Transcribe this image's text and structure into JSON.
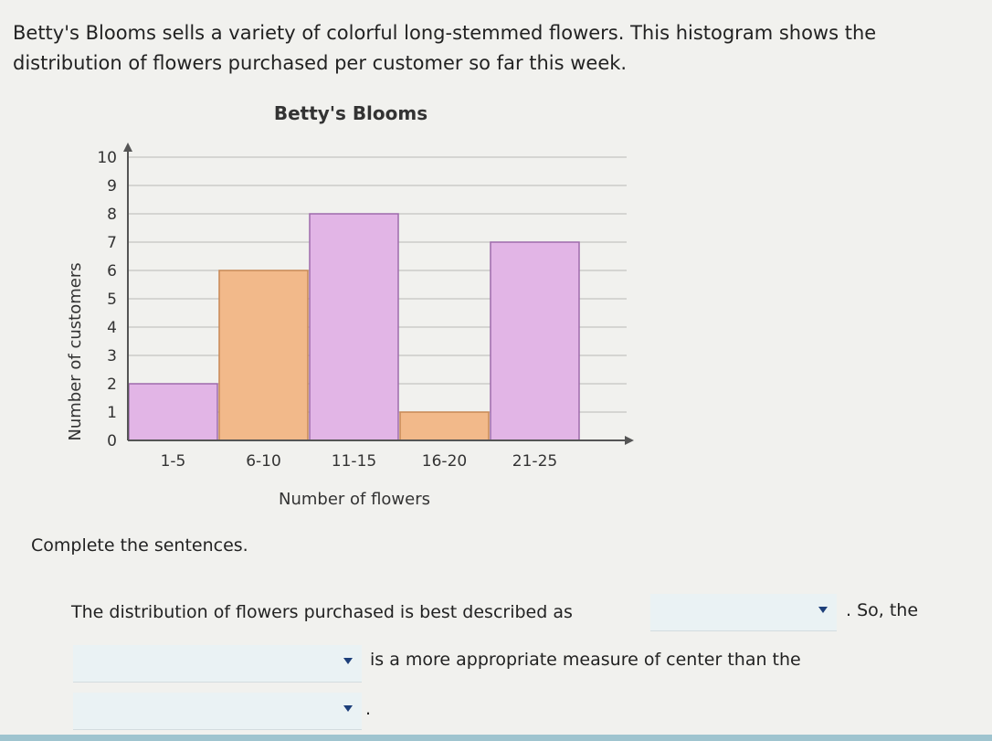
{
  "intro": "Betty's Blooms sells a variety of colorful long-stemmed flowers. This histogram shows the distribution of flowers purchased per customer so far this week.",
  "chart_data": {
    "type": "bar",
    "title": "Betty's Blooms",
    "xlabel": "Number of flowers",
    "ylabel": "Number of customers",
    "categories": [
      "1-5",
      "6-10",
      "11-15",
      "16-20",
      "21-25"
    ],
    "values": [
      2,
      6,
      8,
      1,
      7
    ],
    "ylim": [
      0,
      10
    ],
    "yticks": [
      0,
      1,
      2,
      3,
      4,
      5,
      6,
      7,
      8,
      9,
      10
    ],
    "grid": true,
    "colors": [
      "#e2b5e6",
      "#f2b98a",
      "#e2b5e6",
      "#f2b98a",
      "#e2b5e6"
    ],
    "edge_colors": [
      "#9e6bab",
      "#c78854",
      "#9e6bab",
      "#c78854",
      "#9e6bab"
    ]
  },
  "prompt": "Complete the sentences.",
  "sentence1_before": "The distribution of flowers purchased is best described as",
  "sentence1_after": ". So, the",
  "sentence2": "is a more appropriate measure of center than the",
  "sentence3_after": ".",
  "dropdowns": {
    "shape": "",
    "better_measure": "",
    "other_measure": ""
  }
}
